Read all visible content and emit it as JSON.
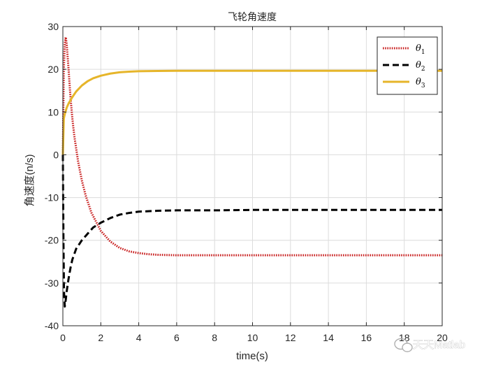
{
  "watermark": {
    "text": "天天Matlab"
  },
  "chart_data": {
    "type": "line",
    "title": "飞轮角速度",
    "xlabel": "time(s)",
    "ylabel": "角速度(n/s)",
    "xlim": [
      0,
      20
    ],
    "ylim": [
      -40,
      30
    ],
    "xticks": [
      0,
      2,
      4,
      6,
      8,
      10,
      12,
      14,
      16,
      18,
      20
    ],
    "yticks": [
      -40,
      -30,
      -20,
      -10,
      0,
      10,
      20,
      30
    ],
    "grid": true,
    "legend_position": "top-right",
    "series": [
      {
        "name": "θ1",
        "legend_base": "θ",
        "legend_sub": "1",
        "color": "#c81e1e",
        "style": "dotted",
        "x": [
          0,
          0.05,
          0.1,
          0.15,
          0.2,
          0.3,
          0.4,
          0.5,
          0.6,
          0.8,
          1.0,
          1.2,
          1.5,
          2.0,
          2.5,
          3.0,
          3.5,
          4.0,
          4.5,
          5.0,
          6.0,
          8.0,
          10.0,
          14.0,
          20.0
        ],
        "y": [
          0,
          20,
          26,
          27.5,
          26,
          20,
          13.5,
          8.5,
          4.5,
          -1.5,
          -6,
          -9.5,
          -13.5,
          -17.8,
          -20.3,
          -21.8,
          -22.6,
          -23.0,
          -23.25,
          -23.4,
          -23.5,
          -23.5,
          -23.5,
          -23.5,
          -23.5
        ]
      },
      {
        "name": "θ2",
        "legend_base": "θ",
        "legend_sub": "2",
        "color": "#000000",
        "style": "dashed",
        "x": [
          0,
          0.03,
          0.06,
          0.1,
          0.15,
          0.2,
          0.3,
          0.4,
          0.5,
          0.7,
          1.0,
          1.3,
          1.6,
          2.0,
          2.5,
          3.0,
          3.5,
          4.0,
          5.0,
          6.0,
          8.0,
          10.0,
          14.0,
          20.0
        ],
        "y": [
          0,
          -20,
          -32,
          -35.5,
          -34,
          -32,
          -29,
          -26.5,
          -24.5,
          -22,
          -20,
          -18.5,
          -17,
          -15.9,
          -14.8,
          -14.0,
          -13.6,
          -13.3,
          -13.1,
          -13.0,
          -13.0,
          -12.9,
          -12.9,
          -12.9
        ]
      },
      {
        "name": "θ3",
        "legend_base": "θ",
        "legend_sub": "3",
        "color": "#e6b52a",
        "style": "solid",
        "x": [
          0,
          0.05,
          0.1,
          0.2,
          0.3,
          0.5,
          0.7,
          1.0,
          1.3,
          1.6,
          2.0,
          2.5,
          3.0,
          3.5,
          4.0,
          5.0,
          6.0,
          8.0,
          10.0,
          14.0,
          20.0
        ],
        "y": [
          0,
          8.5,
          9.5,
          11,
          12,
          13.5,
          14.8,
          16.2,
          17.2,
          17.9,
          18.5,
          19.0,
          19.3,
          19.45,
          19.55,
          19.62,
          19.65,
          19.65,
          19.65,
          19.65,
          19.65
        ]
      }
    ]
  }
}
